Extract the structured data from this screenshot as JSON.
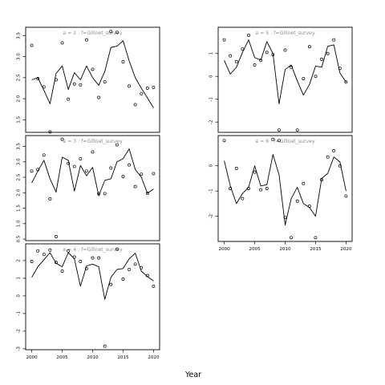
{
  "chart_data": {
    "type": "scatter",
    "xlabel": "Year",
    "series_label_sep": " : ",
    "panels": [
      {
        "a": "a = 2",
        "f": "f=Gillnet_survey",
        "x": [
          2000,
          2001,
          2002,
          2003,
          2004,
          2005,
          2006,
          2007,
          2008,
          2009,
          2010,
          2011,
          2012,
          2013,
          2014,
          2015,
          2016,
          2017,
          2018,
          2019,
          2020
        ],
        "fitted": [
          2.45,
          2.5,
          2.2,
          1.88,
          2.6,
          2.78,
          2.22,
          2.62,
          2.45,
          2.78,
          2.5,
          2.32,
          2.65,
          3.22,
          3.25,
          3.38,
          2.9,
          2.5,
          2.25,
          2.02,
          1.78
        ],
        "observed": [
          3.27,
          2.48,
          2.28,
          1.21,
          2.45,
          3.33,
          1.99,
          2.35,
          2.33,
          3.4,
          2.7,
          2.03,
          2.4,
          3.6,
          3.58,
          2.88,
          2.3,
          1.86,
          2.12,
          2.25,
          2.27
        ],
        "ylim": [
          1.2,
          3.7
        ],
        "yticks": [
          "1.5",
          "2.0",
          "2.5",
          "3.0",
          "3.5"
        ],
        "ytick_values": [
          1.5,
          2.0,
          2.5,
          3.0,
          3.5
        ],
        "xticks": [],
        "xtick_values": []
      },
      {
        "a": "a = 3",
        "f": "f=Gillnet_survey",
        "x": [
          2000,
          2001,
          2002,
          2003,
          2004,
          2005,
          2006,
          2007,
          2008,
          2009,
          2010,
          2011,
          2012,
          2013,
          2014,
          2015,
          2016,
          2017,
          2018,
          2019,
          2020
        ],
        "fitted": [
          2.32,
          2.7,
          3.05,
          2.45,
          2.02,
          3.15,
          3.05,
          2.05,
          2.88,
          2.55,
          2.82,
          1.9,
          2.4,
          2.45,
          3.0,
          3.1,
          3.42,
          2.75,
          2.5,
          1.98,
          2.12
        ],
        "observed": [
          2.7,
          2.75,
          3.22,
          1.8,
          0.58,
          3.73,
          2.95,
          2.85,
          3.1,
          2.7,
          3.32,
          1.97,
          1.97,
          2.8,
          3.55,
          2.52,
          2.9,
          2.2,
          2.6,
          1.98,
          2.62
        ],
        "ylim": [
          0.45,
          3.85
        ],
        "yticks": [
          "0.5",
          "1.0",
          "1.5",
          "2.0",
          "2.5",
          "3.0",
          "3.5"
        ],
        "ytick_values": [
          0.5,
          1.0,
          1.5,
          2.0,
          2.5,
          3.0,
          3.5
        ],
        "xticks": [],
        "xtick_values": []
      },
      {
        "a": "a = 4",
        "f": "f=Gillnet_survey",
        "x": [
          2000,
          2001,
          2002,
          2003,
          2004,
          2005,
          2006,
          2007,
          2008,
          2009,
          2010,
          2011,
          2012,
          2013,
          2014,
          2015,
          2016,
          2017,
          2018,
          2019,
          2020
        ],
        "fitted": [
          1.05,
          1.65,
          2.05,
          2.45,
          1.85,
          1.65,
          2.45,
          2.1,
          0.55,
          1.7,
          1.8,
          1.65,
          -0.2,
          1.05,
          1.5,
          1.55,
          2.1,
          2.42,
          1.4,
          1.1,
          0.85
        ],
        "observed": [
          1.95,
          2.55,
          2.35,
          2.6,
          1.9,
          1.4,
          2.55,
          2.2,
          1.95,
          1.55,
          2.15,
          2.15,
          -2.85,
          0.65,
          2.65,
          0.95,
          1.5,
          1.8,
          1.6,
          1.15,
          0.55
        ],
        "ylim": [
          -3.05,
          2.95
        ],
        "yticks": [
          "-3",
          "-2",
          "-1",
          "0",
          "1",
          "2"
        ],
        "ytick_values": [
          -3,
          -2,
          -1,
          0,
          1,
          2
        ],
        "xticks": [
          "2000",
          "2005",
          "2010",
          "2015",
          "2020"
        ],
        "xtick_values": [
          2000,
          2005,
          2010,
          2015,
          2020
        ]
      },
      {
        "a": "a = 5",
        "f": "f=Gillnet_survey",
        "x": [
          2000,
          2001,
          2002,
          2003,
          2004,
          2005,
          2006,
          2007,
          2008,
          2009,
          2010,
          2011,
          2012,
          2013,
          2014,
          2015,
          2016,
          2017,
          2018,
          2019,
          2020
        ],
        "fitted": [
          0.7,
          0.1,
          0.4,
          1.05,
          1.6,
          0.82,
          0.72,
          1.52,
          1.0,
          -1.2,
          0.3,
          0.5,
          -0.2,
          -0.82,
          -0.35,
          0.45,
          0.4,
          1.32,
          1.38,
          0.15,
          -0.25
        ],
        "observed": [
          1.6,
          0.9,
          0.65,
          1.2,
          1.8,
          0.5,
          0.7,
          1.05,
          0.95,
          -2.35,
          1.15,
          0.4,
          -2.35,
          -0.1,
          1.3,
          0.0,
          0.75,
          1.0,
          1.6,
          0.35,
          -0.25
        ],
        "ylim": [
          -2.45,
          2.15
        ],
        "yticks": [
          "-2",
          "-1",
          "0",
          "1"
        ],
        "ytick_values": [
          -2,
          -1,
          0,
          1
        ],
        "xticks": [],
        "xtick_values": []
      },
      {
        "a": "a = 6",
        "f": "f=Gillnet_survey",
        "x": [
          2000,
          2001,
          2002,
          2003,
          2004,
          2005,
          2006,
          2007,
          2008,
          2009,
          2010,
          2011,
          2012,
          2013,
          2014,
          2015,
          2016,
          2017,
          2018,
          2019,
          2020
        ],
        "fitted": [
          0.2,
          -0.8,
          -1.5,
          -1.1,
          -0.85,
          0.0,
          -0.8,
          -0.75,
          0.45,
          -0.35,
          -2.35,
          -1.3,
          -0.85,
          -1.5,
          -1.65,
          -2.0,
          -0.5,
          -0.3,
          0.35,
          0.15,
          -1.0
        ],
        "observed": [
          1.0,
          -0.9,
          -0.1,
          -1.3,
          -0.9,
          -0.25,
          -0.95,
          -0.9,
          1.05,
          1.0,
          -2.05,
          -2.85,
          -1.4,
          -0.7,
          -1.6,
          -2.85,
          -0.55,
          0.35,
          0.6,
          0.0,
          -1.2
        ],
        "ylim": [
          -3.0,
          1.2
        ],
        "yticks": [
          "-2",
          "-1",
          "0"
        ],
        "ytick_values": [
          -2,
          -1,
          0
        ],
        "xticks": [
          "2000",
          "2005",
          "2010",
          "2015",
          "2020"
        ],
        "xtick_values": [
          2000,
          2005,
          2010,
          2015,
          2020
        ]
      }
    ]
  }
}
